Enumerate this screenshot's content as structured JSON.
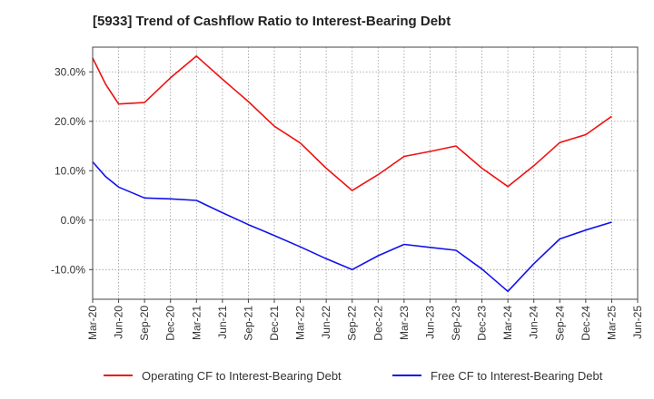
{
  "chart_data": {
    "type": "line",
    "title": "[5933]  Trend of Cashflow Ratio to Interest-Bearing Debt",
    "xlabel": "",
    "ylabel": "",
    "x_ticks": [
      "Mar-20",
      "Jun-20",
      "Sep-20",
      "Dec-20",
      "Mar-21",
      "Jun-21",
      "Sep-21",
      "Dec-21",
      "Mar-22",
      "Jun-22",
      "Sep-22",
      "Dec-22",
      "Mar-23",
      "Jun-23",
      "Sep-23",
      "Dec-23",
      "Mar-24",
      "Jun-24",
      "Sep-24",
      "Dec-24",
      "Mar-25",
      "Jun-25"
    ],
    "y_ticks": [
      -10,
      0,
      10,
      20,
      30
    ],
    "y_tick_labels": [
      "-10.0%",
      "0.0%",
      "10.0%",
      "20.0%",
      "30.0%"
    ],
    "ylim": [
      -16,
      35
    ],
    "grid": true,
    "legend_position": "bottom",
    "series": [
      {
        "name": "Operating CF to Interest-Bearing Debt",
        "color": "#ee1111",
        "points": [
          [
            0,
            32.8
          ],
          [
            0.5,
            27.5
          ],
          [
            1,
            23.5
          ],
          [
            2,
            23.8
          ],
          [
            3,
            28.8
          ],
          [
            4,
            33.2
          ],
          [
            5,
            28.5
          ],
          [
            6,
            24.0
          ],
          [
            7,
            19.0
          ],
          [
            8,
            15.6
          ],
          [
            9,
            10.5
          ],
          [
            10,
            6.0
          ],
          [
            11,
            9.2
          ],
          [
            12,
            12.9
          ],
          [
            13,
            13.9
          ],
          [
            14,
            15.0
          ],
          [
            15,
            10.5
          ],
          [
            16,
            6.8
          ],
          [
            17,
            11.0
          ],
          [
            18,
            15.7
          ],
          [
            19,
            17.3
          ],
          [
            20,
            21.0
          ]
        ]
      },
      {
        "name": "Free CF to Interest-Bearing Debt",
        "color": "#1111ee",
        "points": [
          [
            0,
            11.8
          ],
          [
            0.5,
            8.8
          ],
          [
            1,
            6.7
          ],
          [
            2,
            4.5
          ],
          [
            3,
            4.3
          ],
          [
            4,
            4.0
          ],
          [
            5,
            1.5
          ],
          [
            6,
            -0.9
          ],
          [
            7,
            -3.1
          ],
          [
            8,
            -5.4
          ],
          [
            9,
            -7.8
          ],
          [
            10,
            -10.0
          ],
          [
            11,
            -7.2
          ],
          [
            12,
            -4.9
          ],
          [
            13,
            -5.5
          ],
          [
            14,
            -6.1
          ],
          [
            15,
            -9.9
          ],
          [
            16,
            -14.4
          ],
          [
            17,
            -8.8
          ],
          [
            18,
            -3.8
          ],
          [
            19,
            -2.0
          ],
          [
            20,
            -0.4
          ]
        ]
      }
    ]
  }
}
